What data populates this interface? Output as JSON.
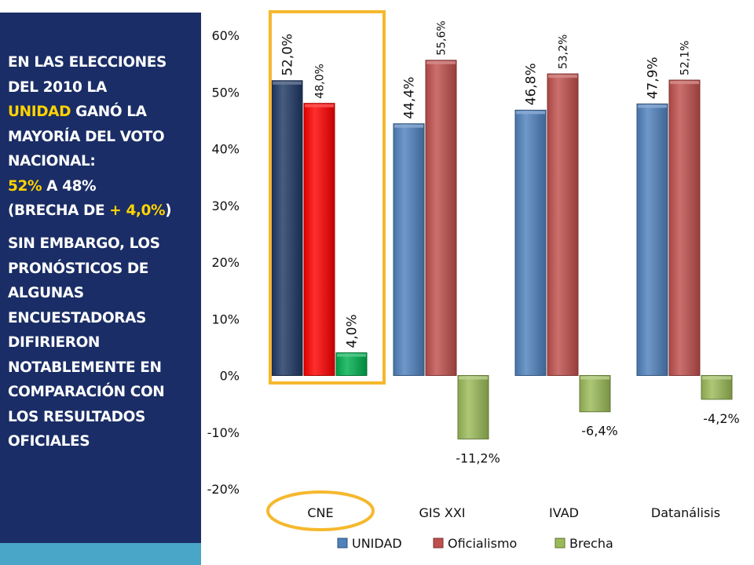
{
  "panel": {
    "p1_l1": "EN LAS ELECCIONES",
    "p1_l2": "DEL 2010 LA",
    "p1_l3a": "UNIDAD",
    "p1_l3b": " GANÓ LA",
    "p1_l4": "MAYORÍA DEL VOTO",
    "p1_l5": "NACIONAL:",
    "p1_l6a": "52%",
    "p1_l6b": " A 48%",
    "p1_l7a": "(BRECHA DE ",
    "p1_l7b": "+ 4,0%",
    "p1_l7c": ")",
    "p2_l1": "SIN EMBARGO, LOS",
    "p2_l2": "PRONÓSTICOS DE",
    "p2_l3": "ALGUNAS",
    "p2_l4": "ENCUESTADORAS",
    "p2_l5": "DIFIRIERON",
    "p2_l6": "NOTABLEMENTE EN",
    "p2_l7": "COMPARACIÓN CON",
    "p2_l8": "LOS RESULTADOS",
    "p2_l9": "OFICIALES"
  },
  "colors": {
    "panel_bg": "#1a2d66",
    "highlight_text": "#ffd300",
    "highlight_frame": "#f5b82e",
    "unidad": "#4f81bd",
    "oficialismo": "#c0504d",
    "brecha": "#9bbb59",
    "cne_unidad": "#1f3864",
    "cne_oficialismo": "#ff0000",
    "cne_brecha": "#00b050"
  },
  "chart_data": {
    "type": "bar",
    "categories": [
      "CNE",
      "GIS XXI",
      "IVAD",
      "Datanálisis"
    ],
    "series": [
      {
        "name": "UNIDAD",
        "values": [
          52.0,
          44.4,
          46.8,
          47.9
        ],
        "labels": [
          "52,0%",
          "44,4%",
          "46,8%",
          "47,9%"
        ]
      },
      {
        "name": "Oficialismo",
        "values": [
          48.0,
          55.6,
          53.2,
          52.1
        ],
        "labels": [
          "48,0%",
          "55,6%",
          "53,2%",
          "52,1%"
        ]
      },
      {
        "name": "Brecha",
        "values": [
          4.0,
          -11.2,
          -6.4,
          -4.2
        ],
        "labels": [
          "4,0%",
          "-11,2%",
          "-6,4%",
          "-4,2%"
        ]
      }
    ],
    "yticks": [
      "60%",
      "50%",
      "40%",
      "30%",
      "20%",
      "10%",
      "0%",
      "-10%",
      "-20%"
    ],
    "ylim": [
      -20,
      60
    ],
    "grid": false,
    "legend_position": "bottom",
    "highlighted_category": "CNE"
  }
}
